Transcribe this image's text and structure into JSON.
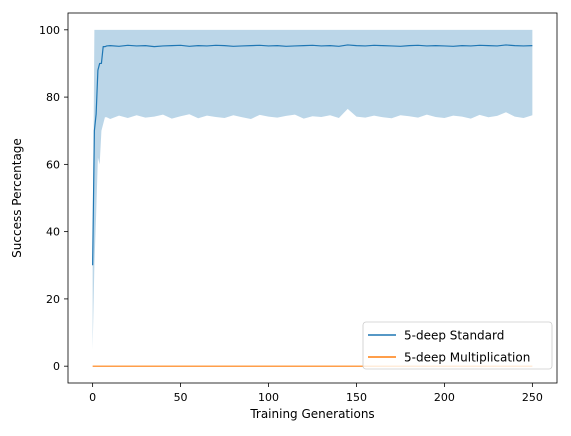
{
  "chart_data": {
    "type": "line",
    "title": "",
    "xlabel": "Training Generations",
    "ylabel": "Success Percentage",
    "xlim": [
      -14,
      264
    ],
    "ylim": [
      -5,
      105
    ],
    "xticks": [
      0,
      50,
      100,
      150,
      200,
      250
    ],
    "yticks": [
      0,
      20,
      40,
      60,
      80,
      100
    ],
    "grid": false,
    "legend_position": "lower-right",
    "series": [
      {
        "name": "5-deep Standard",
        "color": "#1f77b4",
        "x": [
          0,
          1,
          2,
          3,
          4,
          5,
          6,
          7,
          8,
          10,
          15,
          20,
          25,
          30,
          35,
          40,
          45,
          50,
          55,
          60,
          65,
          70,
          75,
          80,
          85,
          90,
          95,
          100,
          105,
          110,
          115,
          120,
          125,
          130,
          135,
          140,
          145,
          150,
          155,
          160,
          165,
          170,
          175,
          180,
          185,
          190,
          195,
          200,
          205,
          210,
          215,
          220,
          225,
          230,
          235,
          240,
          245,
          250
        ],
        "y": [
          30,
          70,
          75,
          88,
          90,
          90,
          95,
          95,
          95.2,
          95.3,
          95.1,
          95.4,
          95.2,
          95.3,
          95.0,
          95.2,
          95.3,
          95.4,
          95.1,
          95.3,
          95.2,
          95.4,
          95.3,
          95.1,
          95.2,
          95.3,
          95.4,
          95.2,
          95.3,
          95.1,
          95.2,
          95.3,
          95.4,
          95.2,
          95.3,
          95.1,
          95.5,
          95.3,
          95.2,
          95.4,
          95.3,
          95.2,
          95.1,
          95.3,
          95.4,
          95.2,
          95.3,
          95.2,
          95.1,
          95.3,
          95.2,
          95.4,
          95.3,
          95.2,
          95.5,
          95.3,
          95.2,
          95.3
        ],
        "band_upper": [
          30,
          100,
          100,
          100,
          100,
          100,
          100,
          100,
          100,
          100,
          100,
          100,
          100,
          100,
          100,
          100,
          100,
          100,
          100,
          100,
          100,
          100,
          100,
          100,
          100,
          100,
          100,
          100,
          100,
          100,
          100,
          100,
          100,
          100,
          100,
          100,
          100,
          100,
          100,
          100,
          100,
          100,
          100,
          100,
          100,
          100,
          100,
          100,
          100,
          100,
          100,
          100,
          100,
          100,
          100,
          100,
          100,
          100
        ],
        "band_lower": [
          5,
          30,
          45,
          62,
          60,
          70,
          72,
          74,
          74,
          73.5,
          74.5,
          73.8,
          74.6,
          73.9,
          74.2,
          74.8,
          73.6,
          74.3,
          74.9,
          73.7,
          74.5,
          74.1,
          73.8,
          74.6,
          74.0,
          73.5,
          74.7,
          74.2,
          73.9,
          74.4,
          74.8,
          73.6,
          74.3,
          74.1,
          74.6,
          73.8,
          76.5,
          74.2,
          73.9,
          74.5,
          74.0,
          73.7,
          74.6,
          74.3,
          73.9,
          74.8,
          74.1,
          73.8,
          74.5,
          74.2,
          73.6,
          74.7,
          74.0,
          74.4,
          75.5,
          74.2,
          73.8,
          74.6
        ]
      },
      {
        "name": "5-deep Multiplication",
        "color": "#ff7f0e",
        "x": [
          0,
          250
        ],
        "y": [
          0,
          0
        ]
      }
    ]
  }
}
